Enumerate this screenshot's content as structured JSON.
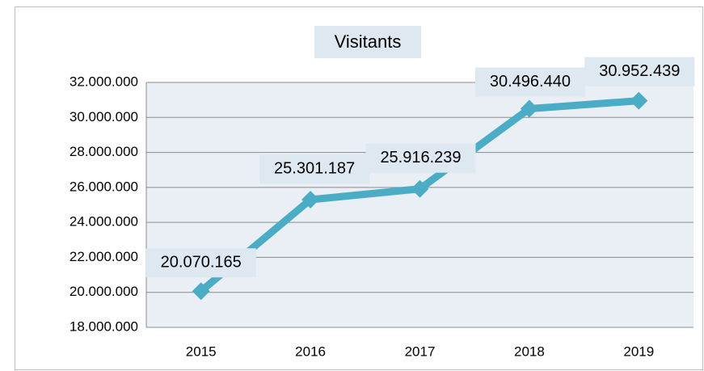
{
  "chart_data": {
    "type": "line",
    "title": "Visitants",
    "categories": [
      "2015",
      "2016",
      "2017",
      "2018",
      "2019"
    ],
    "series": [
      {
        "name": "Visitants",
        "color": "#4bacc6",
        "values": [
          20070165,
          25301187,
          25916239,
          30496440,
          30952439
        ],
        "value_labels": [
          "20.070.165",
          "25.301.187",
          "25.916.239",
          "30.496.440",
          "30.952.439"
        ]
      }
    ],
    "ylim": [
      18000000,
      32000000
    ],
    "yticks": [
      {
        "value": 18000000,
        "label": "18.000.000"
      },
      {
        "value": 20000000,
        "label": "20.000.000"
      },
      {
        "value": 22000000,
        "label": "22.000.000"
      },
      {
        "value": 24000000,
        "label": "24.000.000"
      },
      {
        "value": 26000000,
        "label": "26.000.000"
      },
      {
        "value": 28000000,
        "label": "28.000.000"
      },
      {
        "value": 30000000,
        "label": "30.000.000"
      },
      {
        "value": 32000000,
        "label": "32.000.000"
      }
    ],
    "grid": true
  }
}
